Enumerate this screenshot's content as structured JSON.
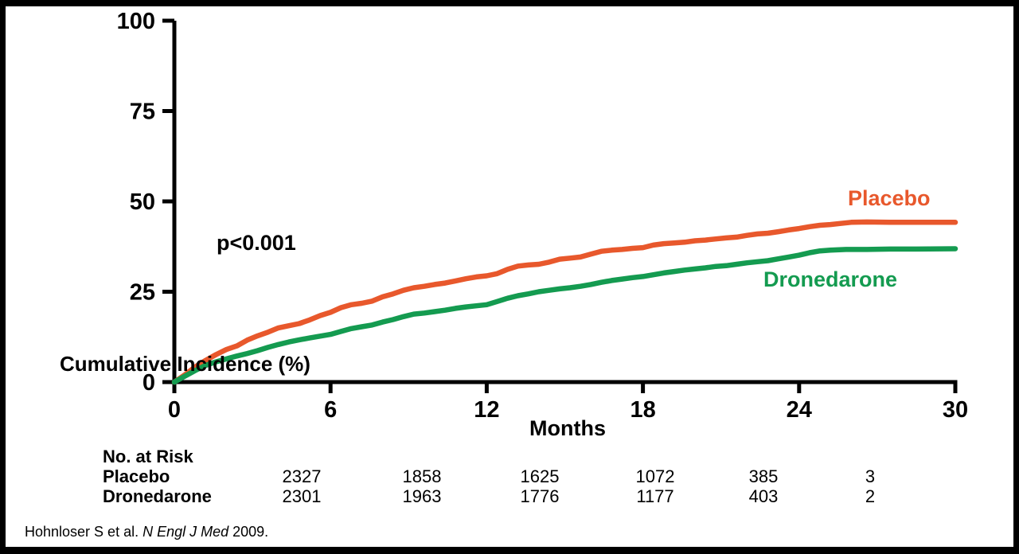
{
  "accent_colors": {
    "placebo": "#E8582C",
    "dronedarone": "#149B50",
    "axis": "#000000",
    "background": "#FFFFFF"
  },
  "annotations": {
    "p_value": "p<0.001",
    "placebo_label": "Placebo",
    "dronedarone_label": "Dronedarone"
  },
  "risk_table": {
    "header": "No. at Risk",
    "rows": [
      {
        "label": "Placebo",
        "values": [
          "2327",
          "1858",
          "1625",
          "1072",
          "385",
          "3"
        ]
      },
      {
        "label": "Dronedarone",
        "values": [
          "2301",
          "1963",
          "1776",
          "1177",
          "403",
          "2"
        ]
      }
    ]
  },
  "citation": {
    "prefix": "Hohnloser S et al. ",
    "journal": "N Engl J Med",
    "suffix": " 2009."
  },
  "chart_data": {
    "type": "line",
    "title": "",
    "xlabel": "Months",
    "ylabel": "Cumulative Incidence (%)",
    "xlim": [
      0,
      30
    ],
    "ylim": [
      0,
      100
    ],
    "x_ticks": [
      0,
      6,
      12,
      18,
      24,
      30
    ],
    "y_ticks": [
      0,
      25,
      50,
      75,
      100
    ],
    "grid": false,
    "legend_position": "end-of-line labels",
    "p_value": "p<0.001",
    "x_samples_months": [
      0,
      3,
      6,
      9,
      12,
      15,
      18,
      21,
      24,
      27,
      30
    ],
    "series": [
      {
        "name": "Placebo",
        "color": "#E8582C",
        "values_at_samples": [
          0,
          12.5,
          19.3,
          26.0,
          29.4,
          34.2,
          37.2,
          39.8,
          42.5,
          44.0,
          44.2
        ],
        "points": [
          [
            0,
            0
          ],
          [
            0.4,
            2.0
          ],
          [
            0.8,
            4.2
          ],
          [
            1.2,
            6.0
          ],
          [
            1.6,
            7.6
          ],
          [
            2,
            9.0
          ],
          [
            2.4,
            10.0
          ],
          [
            2.8,
            11.6
          ],
          [
            3.2,
            12.8
          ],
          [
            3.6,
            13.8
          ],
          [
            4,
            15.0
          ],
          [
            4.4,
            15.6
          ],
          [
            4.8,
            16.2
          ],
          [
            5.2,
            17.2
          ],
          [
            5.6,
            18.4
          ],
          [
            6,
            19.3
          ],
          [
            6.4,
            20.6
          ],
          [
            6.8,
            21.4
          ],
          [
            7.2,
            21.8
          ],
          [
            7.6,
            22.4
          ],
          [
            8,
            23.6
          ],
          [
            8.4,
            24.4
          ],
          [
            8.8,
            25.4
          ],
          [
            9.2,
            26.1
          ],
          [
            9.6,
            26.5
          ],
          [
            10,
            27.0
          ],
          [
            10.4,
            27.4
          ],
          [
            10.8,
            28.0
          ],
          [
            11.2,
            28.6
          ],
          [
            11.6,
            29.1
          ],
          [
            12,
            29.4
          ],
          [
            12.4,
            30.0
          ],
          [
            12.8,
            31.2
          ],
          [
            13.2,
            32.1
          ],
          [
            13.6,
            32.4
          ],
          [
            14,
            32.6
          ],
          [
            14.4,
            33.2
          ],
          [
            14.8,
            34.0
          ],
          [
            15.2,
            34.3
          ],
          [
            15.6,
            34.6
          ],
          [
            16,
            35.4
          ],
          [
            16.4,
            36.2
          ],
          [
            16.8,
            36.5
          ],
          [
            17.2,
            36.7
          ],
          [
            17.6,
            37.0
          ],
          [
            18,
            37.2
          ],
          [
            18.4,
            37.9
          ],
          [
            18.8,
            38.3
          ],
          [
            19.2,
            38.5
          ],
          [
            19.6,
            38.7
          ],
          [
            20,
            39.1
          ],
          [
            20.4,
            39.3
          ],
          [
            20.8,
            39.6
          ],
          [
            21.2,
            39.9
          ],
          [
            21.6,
            40.1
          ],
          [
            22,
            40.6
          ],
          [
            22.4,
            41.0
          ],
          [
            22.8,
            41.2
          ],
          [
            23.2,
            41.6
          ],
          [
            23.6,
            42.1
          ],
          [
            24,
            42.5
          ],
          [
            24.4,
            43.0
          ],
          [
            24.8,
            43.4
          ],
          [
            25.2,
            43.6
          ],
          [
            25.6,
            43.9
          ],
          [
            26,
            44.2
          ],
          [
            26.6,
            44.3
          ],
          [
            27.5,
            44.2
          ],
          [
            28.5,
            44.2
          ],
          [
            30,
            44.2
          ]
        ]
      },
      {
        "name": "Dronedarone",
        "color": "#149B50",
        "values_at_samples": [
          0,
          8.5,
          13.2,
          18.7,
          21.4,
          26.0,
          29.2,
          32.0,
          35.0,
          36.5,
          36.9
        ],
        "points": [
          [
            0,
            0
          ],
          [
            0.4,
            1.6
          ],
          [
            0.8,
            3.2
          ],
          [
            1.2,
            4.6
          ],
          [
            1.6,
            5.6
          ],
          [
            2,
            6.4
          ],
          [
            2.4,
            7.2
          ],
          [
            2.8,
            7.9
          ],
          [
            3.2,
            8.7
          ],
          [
            3.6,
            9.6
          ],
          [
            4,
            10.4
          ],
          [
            4.4,
            11.1
          ],
          [
            4.8,
            11.7
          ],
          [
            5.2,
            12.2
          ],
          [
            5.6,
            12.7
          ],
          [
            6,
            13.2
          ],
          [
            6.4,
            14.0
          ],
          [
            6.8,
            14.8
          ],
          [
            7.2,
            15.3
          ],
          [
            7.6,
            15.8
          ],
          [
            8,
            16.6
          ],
          [
            8.4,
            17.3
          ],
          [
            8.8,
            18.1
          ],
          [
            9.2,
            18.8
          ],
          [
            9.6,
            19.1
          ],
          [
            10,
            19.5
          ],
          [
            10.4,
            19.9
          ],
          [
            10.8,
            20.4
          ],
          [
            11.2,
            20.8
          ],
          [
            11.6,
            21.1
          ],
          [
            12,
            21.4
          ],
          [
            12.4,
            22.3
          ],
          [
            12.8,
            23.2
          ],
          [
            13.2,
            23.9
          ],
          [
            13.6,
            24.4
          ],
          [
            14,
            25.0
          ],
          [
            14.4,
            25.4
          ],
          [
            14.8,
            25.8
          ],
          [
            15.2,
            26.1
          ],
          [
            15.6,
            26.5
          ],
          [
            16,
            27.0
          ],
          [
            16.4,
            27.6
          ],
          [
            16.8,
            28.1
          ],
          [
            17.2,
            28.5
          ],
          [
            17.6,
            28.9
          ],
          [
            18,
            29.2
          ],
          [
            18.4,
            29.7
          ],
          [
            18.8,
            30.2
          ],
          [
            19.2,
            30.6
          ],
          [
            19.6,
            31.0
          ],
          [
            20,
            31.3
          ],
          [
            20.4,
            31.6
          ],
          [
            20.8,
            32.0
          ],
          [
            21.2,
            32.2
          ],
          [
            21.6,
            32.6
          ],
          [
            22,
            33.0
          ],
          [
            22.4,
            33.3
          ],
          [
            22.8,
            33.6
          ],
          [
            23.2,
            34.1
          ],
          [
            23.6,
            34.6
          ],
          [
            24,
            35.1
          ],
          [
            24.4,
            35.8
          ],
          [
            24.8,
            36.3
          ],
          [
            25.2,
            36.5
          ],
          [
            25.8,
            36.7
          ],
          [
            26.6,
            36.7
          ],
          [
            27.5,
            36.8
          ],
          [
            28.5,
            36.8
          ],
          [
            30,
            36.9
          ]
        ]
      }
    ]
  }
}
